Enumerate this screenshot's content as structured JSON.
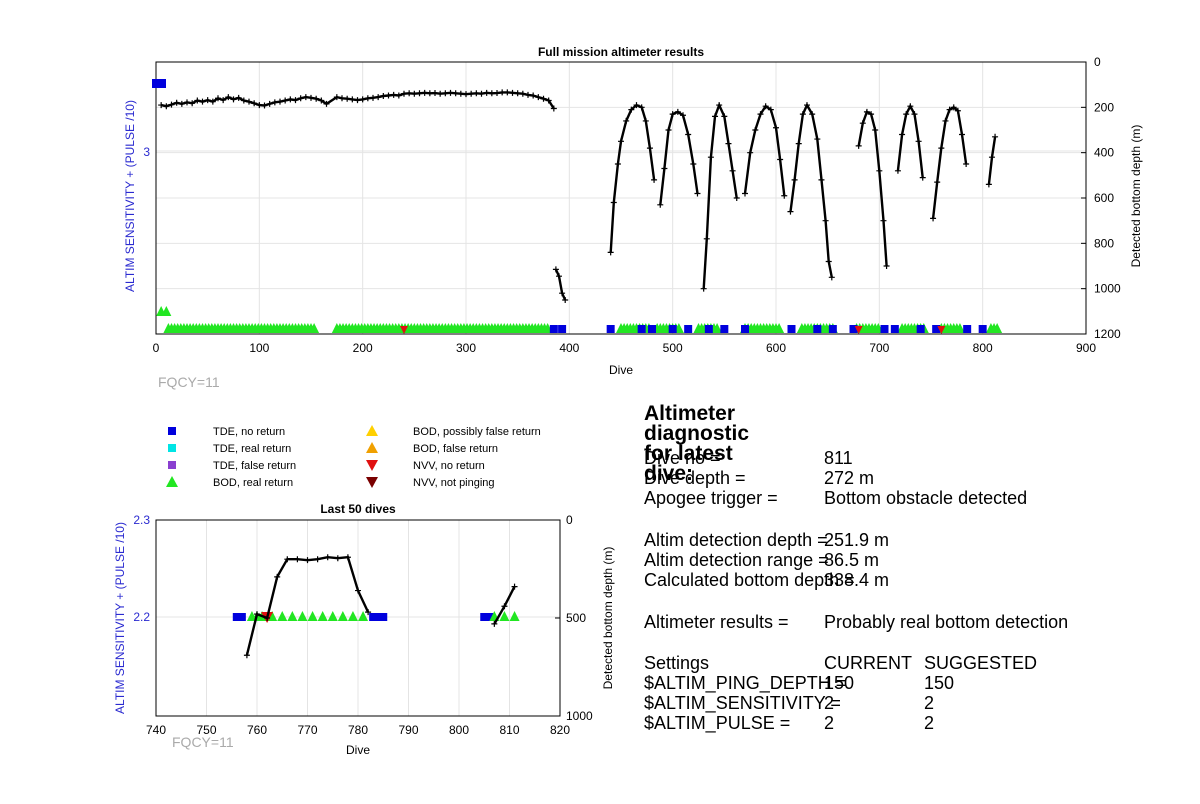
{
  "main_chart": {
    "title": "Full mission altimeter results",
    "xlabel": "Dive",
    "ylabel_left": "ALTIM SENSITIVITY + (PULSE /10)",
    "ylabel_right": "Detected bottom depth (m)",
    "fqcy": "FQCY=11",
    "left_tick": "3",
    "xticks": [
      "0",
      "100",
      "200",
      "300",
      "400",
      "500",
      "600",
      "700",
      "800",
      "900"
    ],
    "yticks_right": [
      "0",
      "200",
      "400",
      "600",
      "800",
      "1000",
      "1200"
    ]
  },
  "small_chart": {
    "title": "Last 50 dives",
    "xlabel": "Dive",
    "ylabel_left": "ALTIM SENSITIVITY + (PULSE /10)",
    "ylabel_right": "Detected bottom depth (m)",
    "fqcy": "FQCY=11",
    "xticks": [
      "740",
      "750",
      "760",
      "770",
      "780",
      "790",
      "800",
      "810",
      "820"
    ],
    "yticks_left": [
      "2.3",
      "2.2"
    ],
    "yticks_right": [
      "0",
      "500",
      "1000"
    ]
  },
  "legend": [
    {
      "label": "TDE, no return",
      "color": "#0000dd",
      "shape": "square"
    },
    {
      "label": "TDE, real return",
      "color": "#00e5e5",
      "shape": "square"
    },
    {
      "label": "TDE, false return",
      "color": "#8a3fd0",
      "shape": "square"
    },
    {
      "label": "BOD, real return",
      "color": "#22e622",
      "shape": "triangle-up"
    },
    {
      "label": "BOD, possibly false return",
      "color": "#ffd000",
      "shape": "triangle-up"
    },
    {
      "label": "BOD, false return",
      "color": "#f0a000",
      "shape": "triangle-up"
    },
    {
      "label": "NVV, no return",
      "color": "#e01010",
      "shape": "triangle-down"
    },
    {
      "label": "NVV, not pinging",
      "color": "#7a0000",
      "shape": "triangle-down"
    }
  ],
  "diagnostic": {
    "title": "Altimeter diagnostic for latest dive:",
    "dive_no_label": "Dive no =",
    "dive_no_value": "811",
    "dive_depth_label": "Dive depth =",
    "dive_depth_value": "272 m",
    "apogee_label": "Apogee trigger =",
    "apogee_value": "Bottom obstacle detected",
    "det_depth_label": "Altim detection depth =",
    "det_depth_value": "251.9 m",
    "det_range_label": "Altim detection range =",
    "det_range_value": "86.5 m",
    "calc_depth_label": "Calculated bottom depth =",
    "calc_depth_value": "338.4 m",
    "results_label": "Altimeter results =",
    "results_value": "Probably real bottom detection",
    "settings_label": "Settings",
    "current_label": "CURRENT",
    "suggested_label": "SUGGESTED",
    "ping_depth_label": "$ALTIM_PING_DEPTH =",
    "ping_depth_current": "150",
    "ping_depth_suggested": "150",
    "sensitivity_label": "$ALTIM_SENSITIVITY =",
    "sensitivity_current": "2",
    "sensitivity_suggested": "2",
    "pulse_label": "$ALTIM_PULSE =",
    "pulse_current": "2",
    "pulse_suggested": "2"
  },
  "chart_data": [
    {
      "type": "scatter",
      "title": "Full mission altimeter results",
      "xlabel": "Dive",
      "ylabel": "ALTIM SENSITIVITY + (PULSE /10)",
      "y2label": "Detected bottom depth (m)",
      "xlim": [
        0,
        900
      ],
      "y2lim": [
        0,
        1200
      ],
      "y2_reversed": true,
      "grid": true,
      "bottom_depth_segments": [
        [
          [
            5,
            190
          ],
          [
            10,
            195
          ],
          [
            15,
            188
          ],
          [
            20,
            180
          ],
          [
            25,
            185
          ],
          [
            30,
            178
          ],
          [
            35,
            182
          ],
          [
            40,
            170
          ],
          [
            45,
            175
          ],
          [
            50,
            168
          ],
          [
            55,
            175
          ],
          [
            60,
            160
          ],
          [
            65,
            168
          ],
          [
            70,
            155
          ],
          [
            75,
            165
          ],
          [
            80,
            158
          ],
          [
            85,
            170
          ],
          [
            90,
            175
          ],
          [
            95,
            182
          ],
          [
            100,
            190
          ],
          [
            105,
            192
          ],
          [
            110,
            185
          ],
          [
            115,
            178
          ],
          [
            120,
            175
          ],
          [
            125,
            170
          ],
          [
            130,
            165
          ],
          [
            135,
            168
          ],
          [
            140,
            160
          ],
          [
            145,
            155
          ],
          [
            150,
            158
          ],
          [
            155,
            162
          ],
          [
            160,
            170
          ],
          [
            165,
            185
          ],
          [
            175,
            155
          ],
          [
            180,
            160
          ],
          [
            185,
            162
          ],
          [
            190,
            165
          ],
          [
            195,
            168
          ],
          [
            200,
            165
          ],
          [
            205,
            160
          ],
          [
            210,
            158
          ],
          [
            215,
            155
          ],
          [
            220,
            150
          ],
          [
            225,
            148
          ],
          [
            230,
            145
          ],
          [
            235,
            148
          ],
          [
            240,
            140
          ],
          [
            245,
            138
          ],
          [
            250,
            140
          ],
          [
            255,
            138
          ],
          [
            260,
            136
          ],
          [
            265,
            138
          ],
          [
            270,
            137
          ],
          [
            275,
            140
          ],
          [
            280,
            138
          ],
          [
            285,
            136
          ],
          [
            290,
            138
          ],
          [
            295,
            140
          ],
          [
            300,
            142
          ],
          [
            305,
            140
          ],
          [
            310,
            138
          ],
          [
            315,
            140
          ],
          [
            320,
            136
          ],
          [
            325,
            138
          ],
          [
            330,
            137
          ],
          [
            335,
            134
          ],
          [
            340,
            134
          ],
          [
            345,
            136
          ],
          [
            350,
            138
          ],
          [
            355,
            140
          ],
          [
            360,
            145
          ],
          [
            365,
            148
          ],
          [
            370,
            155
          ],
          [
            375,
            162
          ],
          [
            380,
            170
          ],
          [
            385,
            205
          ]
        ],
        [
          [
            387,
            915
          ],
          [
            390,
            945
          ],
          [
            393,
            1020
          ],
          [
            396,
            1050
          ]
        ],
        [
          [
            440,
            840
          ],
          [
            443,
            620
          ],
          [
            447,
            450
          ],
          [
            450,
            350
          ],
          [
            455,
            260
          ],
          [
            460,
            210
          ],
          [
            465,
            190
          ],
          [
            470,
            200
          ],
          [
            474,
            260
          ],
          [
            478,
            380
          ],
          [
            482,
            520
          ]
        ],
        [
          [
            488,
            630
          ],
          [
            492,
            470
          ],
          [
            496,
            300
          ],
          [
            500,
            230
          ],
          [
            505,
            220
          ],
          [
            510,
            235
          ],
          [
            515,
            320
          ],
          [
            520,
            450
          ],
          [
            524,
            580
          ]
        ],
        [
          [
            530,
            1000
          ],
          [
            533,
            780
          ],
          [
            537,
            420
          ],
          [
            541,
            240
          ],
          [
            545,
            190
          ],
          [
            550,
            240
          ],
          [
            554,
            360
          ],
          [
            558,
            480
          ],
          [
            562,
            600
          ]
        ],
        [
          [
            570,
            580
          ],
          [
            575,
            400
          ],
          [
            580,
            300
          ],
          [
            585,
            230
          ],
          [
            590,
            195
          ],
          [
            595,
            210
          ],
          [
            600,
            290
          ],
          [
            604,
            430
          ],
          [
            608,
            590
          ]
        ],
        [
          [
            614,
            660
          ],
          [
            618,
            520
          ],
          [
            622,
            360
          ],
          [
            626,
            230
          ],
          [
            630,
            190
          ],
          [
            635,
            230
          ],
          [
            640,
            340
          ],
          [
            644,
            520
          ],
          [
            648,
            700
          ],
          [
            651,
            880
          ],
          [
            654,
            950
          ]
        ],
        [
          [
            680,
            370
          ],
          [
            684,
            270
          ],
          [
            688,
            220
          ],
          [
            692,
            230
          ],
          [
            696,
            300
          ],
          [
            700,
            480
          ],
          [
            704,
            700
          ],
          [
            707,
            900
          ]
        ],
        [
          [
            718,
            480
          ],
          [
            722,
            320
          ],
          [
            726,
            230
          ],
          [
            730,
            195
          ],
          [
            734,
            230
          ],
          [
            738,
            350
          ],
          [
            742,
            510
          ]
        ],
        [
          [
            752,
            690
          ],
          [
            756,
            530
          ],
          [
            760,
            380
          ],
          [
            764,
            260
          ],
          [
            768,
            210
          ],
          [
            772,
            200
          ],
          [
            776,
            215
          ],
          [
            780,
            320
          ],
          [
            784,
            450
          ]
        ],
        [
          [
            806,
            540
          ],
          [
            809,
            420
          ],
          [
            812,
            330
          ]
        ]
      ],
      "altim_sensitivity_pulse": [
        {
          "x": [
            0,
            10
          ],
          "y": 3.35,
          "marker": "TDE, no return"
        }
      ]
    },
    {
      "type": "scatter",
      "title": "Last 50 dives",
      "xlabel": "Dive",
      "ylabel": "ALTIM SENSITIVITY + (PULSE /10)",
      "y2label": "Detected bottom depth (m)",
      "xlim": [
        740,
        820
      ],
      "ylim_left_ticks": [
        2.2,
        2.3
      ],
      "y2lim": [
        0,
        1000
      ],
      "y2_reversed": true,
      "grid": true,
      "bottom_depth_segments": [
        [
          [
            758,
            690
          ],
          [
            760,
            480
          ],
          [
            762,
            500
          ],
          [
            764,
            290
          ],
          [
            766,
            200
          ],
          [
            768,
            200
          ],
          [
            770,
            205
          ],
          [
            772,
            200
          ],
          [
            774,
            190
          ],
          [
            776,
            195
          ],
          [
            778,
            190
          ],
          [
            780,
            360
          ],
          [
            782,
            470
          ]
        ],
        [
          [
            807,
            530
          ],
          [
            809,
            440
          ],
          [
            811,
            340
          ]
        ]
      ],
      "markers": [
        {
          "series": "TDE, no return",
          "y": 2.2,
          "x": [
            756,
            757,
            783,
            784,
            785,
            805,
            806
          ]
        },
        {
          "series": "BOD, real return",
          "y": 2.2,
          "x": [
            759,
            760,
            761,
            763,
            765,
            767,
            769,
            771,
            773,
            775,
            777,
            779,
            781,
            807,
            809,
            811
          ]
        },
        {
          "series": "NVV, no return",
          "y": 2.2,
          "x": [
            762
          ]
        }
      ]
    }
  ]
}
